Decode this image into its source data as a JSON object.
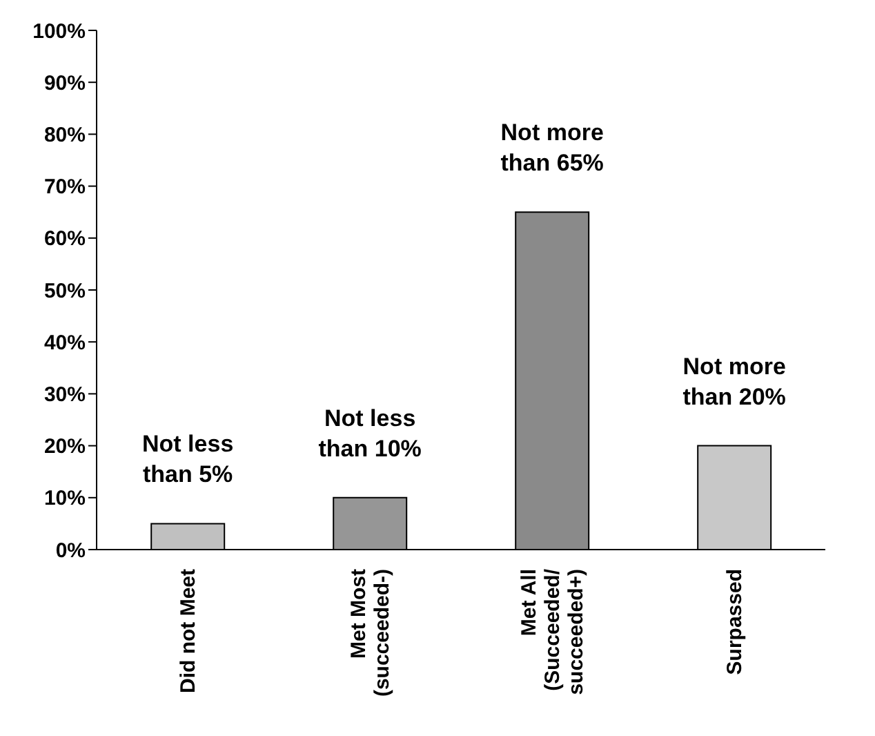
{
  "chart_data": {
    "type": "bar",
    "categories": [
      "Did not Meet",
      "Met Most\n(succeeded-)",
      "Met All\n(Succeeded/\nsucceeded+)",
      "Surpassed"
    ],
    "values": [
      5,
      10,
      65,
      20
    ],
    "colors": [
      "#c0c0c0",
      "#969696",
      "#8a8a8a",
      "#c8c8c8"
    ],
    "value_labels": [
      "Not less\nthan 5%",
      "Not less\nthan 10%",
      "Not more\nthan 65%",
      "Not more\nthan 20%"
    ],
    "ylim": [
      0,
      100
    ],
    "yticks": [
      {
        "value": 0,
        "label": "0%"
      },
      {
        "value": 10,
        "label": "10%"
      },
      {
        "value": 20,
        "label": "20%"
      },
      {
        "value": 30,
        "label": "30%"
      },
      {
        "value": 40,
        "label": "40%"
      },
      {
        "value": 50,
        "label": "50%"
      },
      {
        "value": 60,
        "label": "60%"
      },
      {
        "value": 70,
        "label": "70%"
      },
      {
        "value": 80,
        "label": "80%"
      },
      {
        "value": 90,
        "label": "90%"
      },
      {
        "value": 100,
        "label": "100%"
      }
    ],
    "grid": false,
    "legend": false
  }
}
